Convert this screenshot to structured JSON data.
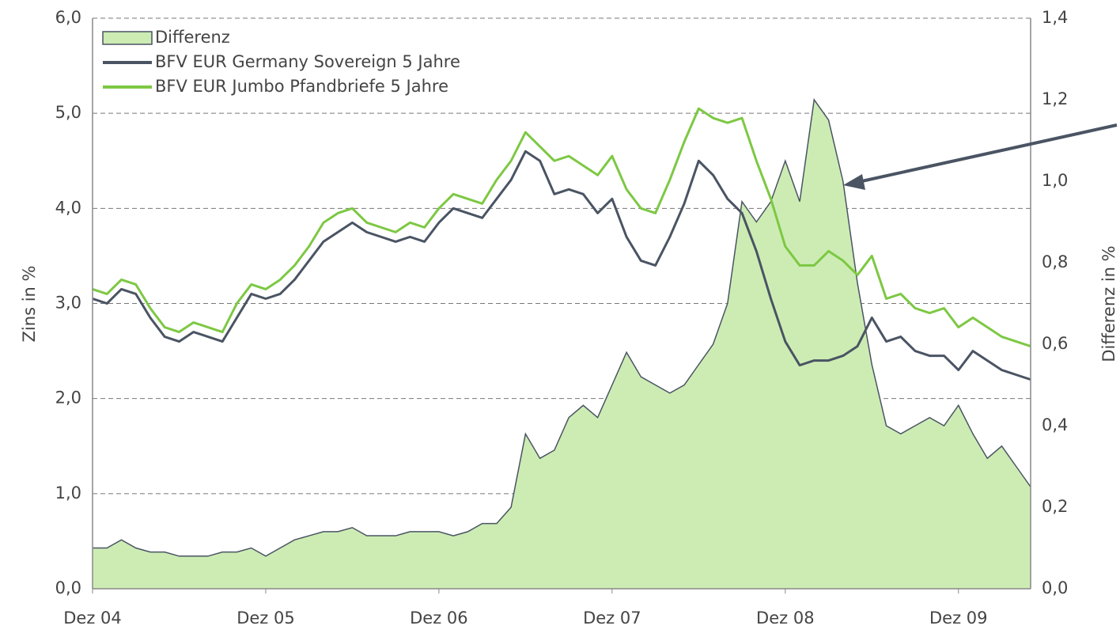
{
  "chart_data": {
    "type": "line",
    "ylabel": "Zins in %",
    "y2label": "Differenz in %",
    "categories": [
      "Dez 04",
      null,
      null,
      null,
      null,
      null,
      null,
      null,
      null,
      null,
      null,
      null,
      "Dez 05",
      null,
      null,
      null,
      null,
      null,
      null,
      null,
      null,
      null,
      null,
      null,
      "Dez 06",
      null,
      null,
      null,
      null,
      null,
      null,
      null,
      null,
      null,
      null,
      null,
      "Dez 07",
      null,
      null,
      null,
      null,
      null,
      null,
      null,
      null,
      null,
      null,
      null,
      "Dez 08",
      null,
      null,
      null,
      null,
      null,
      null,
      null,
      null,
      null,
      null,
      null,
      "Dez 09",
      null,
      null,
      null,
      null,
      null
    ],
    "ylim": [
      0,
      6
    ],
    "yticks": [
      {
        "value": 0,
        "label": "0,0"
      },
      {
        "value": 1,
        "label": "1,0"
      },
      {
        "value": 2,
        "label": "2,0"
      },
      {
        "value": 3,
        "label": "3,0"
      },
      {
        "value": 4,
        "label": "4,0"
      },
      {
        "value": 5,
        "label": "5,0"
      },
      {
        "value": 6,
        "label": "6,0"
      }
    ],
    "y2lim": [
      0,
      1.4
    ],
    "y2ticks": [
      {
        "value": 0,
        "label": "0,0"
      },
      {
        "value": 0.2,
        "label": "0,2"
      },
      {
        "value": 0.4,
        "label": "0,4"
      },
      {
        "value": 0.6,
        "label": "0,6"
      },
      {
        "value": 0.8,
        "label": "0,8"
      },
      {
        "value": 1,
        "label": "1,0"
      },
      {
        "value": 1.2,
        "label": "1,2"
      },
      {
        "value": 1.4,
        "label": "1,4"
      }
    ],
    "grid": true,
    "legend": "top-left",
    "series": [
      {
        "name": "Differenz",
        "kind": "area",
        "axis": "y2",
        "color": "#cdecb4",
        "values": [
          0.1,
          0.1,
          0.12,
          0.1,
          0.09,
          0.09,
          0.08,
          0.08,
          0.08,
          0.09,
          0.09,
          0.1,
          0.08,
          0.1,
          0.12,
          0.13,
          0.14,
          0.14,
          0.15,
          0.13,
          0.13,
          0.13,
          0.14,
          0.14,
          0.14,
          0.13,
          0.14,
          0.16,
          0.16,
          0.2,
          0.38,
          0.32,
          0.34,
          0.42,
          0.45,
          0.42,
          0.5,
          0.58,
          0.52,
          0.5,
          0.48,
          0.5,
          0.55,
          0.6,
          0.7,
          0.95,
          0.9,
          0.95,
          1.05,
          0.95,
          1.2,
          1.15,
          1.0,
          0.75,
          0.55,
          0.4,
          0.38,
          0.4,
          0.42,
          0.4,
          0.45,
          0.38,
          0.32,
          0.35,
          0.3,
          0.25
        ]
      },
      {
        "name": "BFV EUR Germany Sovereign 5 Jahre",
        "color": "#4a5463",
        "values": [
          3.05,
          3.0,
          3.15,
          3.1,
          2.85,
          2.65,
          2.6,
          2.7,
          2.65,
          2.6,
          2.85,
          3.1,
          3.05,
          3.1,
          3.25,
          3.45,
          3.65,
          3.75,
          3.85,
          3.75,
          3.7,
          3.65,
          3.7,
          3.65,
          3.85,
          4.0,
          3.95,
          3.9,
          4.1,
          4.3,
          4.6,
          4.5,
          4.15,
          4.2,
          4.15,
          3.95,
          4.1,
          3.7,
          3.45,
          3.4,
          3.7,
          4.05,
          4.5,
          4.35,
          4.1,
          3.95,
          3.55,
          3.05,
          2.6,
          2.35,
          2.4,
          2.4,
          2.45,
          2.55,
          2.85,
          2.6,
          2.65,
          2.5,
          2.45,
          2.45,
          2.3,
          2.5,
          2.4,
          2.3,
          2.25,
          2.2
        ]
      },
      {
        "name": "BFV EUR Jumbo Pfandbriefe 5 Jahre",
        "color": "#7dc843",
        "values": [
          3.15,
          3.1,
          3.25,
          3.2,
          2.95,
          2.75,
          2.7,
          2.8,
          2.75,
          2.7,
          3.0,
          3.2,
          3.15,
          3.25,
          3.4,
          3.6,
          3.85,
          3.95,
          4.0,
          3.85,
          3.8,
          3.75,
          3.85,
          3.8,
          4.0,
          4.15,
          4.1,
          4.05,
          4.3,
          4.5,
          4.8,
          4.65,
          4.5,
          4.55,
          4.45,
          4.35,
          4.55,
          4.2,
          4.0,
          3.95,
          4.3,
          4.7,
          5.05,
          4.95,
          4.9,
          4.95,
          4.5,
          4.1,
          3.6,
          3.4,
          3.4,
          3.55,
          3.45,
          3.3,
          3.5,
          3.05,
          3.1,
          2.95,
          2.9,
          2.95,
          2.75,
          2.85,
          2.75,
          2.65,
          2.6,
          2.55
        ]
      }
    ]
  }
}
